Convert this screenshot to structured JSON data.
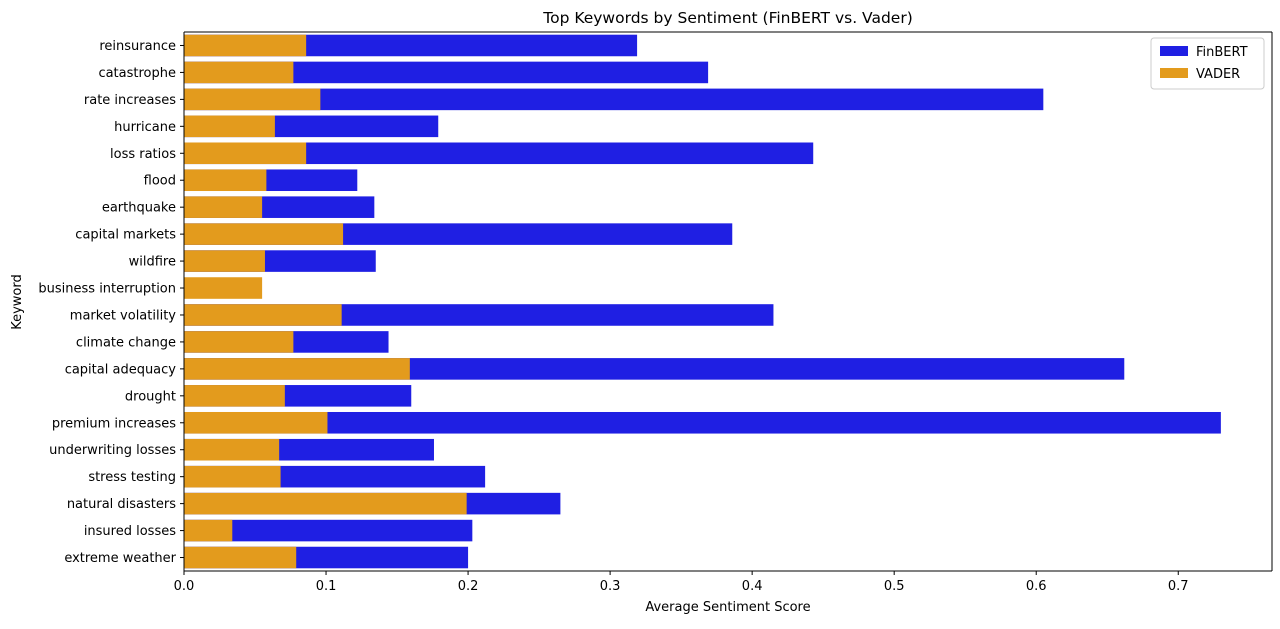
{
  "chart_data": {
    "type": "bar",
    "orientation": "horizontal",
    "title": "Top Keywords by Sentiment (FinBERT vs. Vader)",
    "xlabel": "Average Sentiment Score",
    "ylabel": "Keyword",
    "xlim": [
      0,
      0.766
    ],
    "xticks": [
      "0.0",
      "0.1",
      "0.2",
      "0.3",
      "0.4",
      "0.5",
      "0.6",
      "0.7"
    ],
    "legend_position": "top-right",
    "grid": false,
    "categories": [
      "reinsurance",
      "catastrophe",
      "rate increases",
      "hurricane",
      "loss ratios",
      "flood",
      "earthquake",
      "capital markets",
      "wildfire",
      "business interruption",
      "market volatility",
      "climate change",
      "capital adequacy",
      "drought",
      "premium increases",
      "underwriting losses",
      "stress testing",
      "natural disasters",
      "insured losses",
      "extreme weather"
    ],
    "series": [
      {
        "name": "FinBERT",
        "color": "#1f1fe3",
        "values": [
          0.319,
          0.369,
          0.605,
          0.179,
          0.443,
          0.122,
          0.134,
          0.386,
          0.135,
          0.0,
          0.415,
          0.144,
          0.662,
          0.16,
          0.73,
          0.176,
          0.212,
          0.265,
          0.203,
          0.2
        ]
      },
      {
        "name": "VADER",
        "color": "#e39b1d",
        "values": [
          0.086,
          0.077,
          0.096,
          0.064,
          0.086,
          0.058,
          0.055,
          0.112,
          0.057,
          0.055,
          0.111,
          0.077,
          0.159,
          0.071,
          0.101,
          0.067,
          0.068,
          0.199,
          0.034,
          0.079
        ]
      }
    ]
  }
}
